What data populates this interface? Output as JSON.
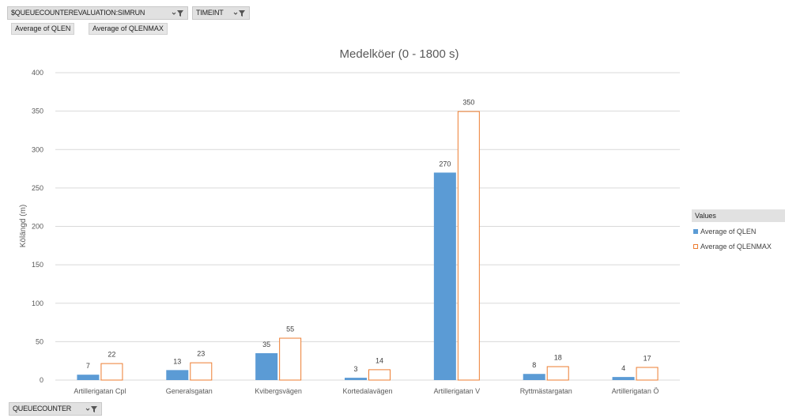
{
  "filters": {
    "top1_label": "$QUEUECOUNTEREVALUATION:SIMRUN",
    "top2_label": "TIMEINT",
    "bottom_label": "QUEUECOUNTER"
  },
  "value_buttons": [
    "Average of QLEN",
    "Average of QLENMAX"
  ],
  "legend": {
    "title": "Values",
    "items": [
      "Average of QLEN",
      "Average of QLENMAX"
    ]
  },
  "colors": {
    "qlen": "#5b9bd5",
    "qlenmax_border": "#ed7d31",
    "grid": "#d9d9d9",
    "text": "#595959"
  },
  "chart_data": {
    "type": "bar",
    "title": "Medelköer (0 - 1800 s)",
    "xlabel": "",
    "ylabel": "Kölängd (m)",
    "ylim": [
      0,
      400
    ],
    "yticks": [
      0,
      50,
      100,
      150,
      200,
      250,
      300,
      350,
      400
    ],
    "categories": [
      "Artillerigatan Cpl",
      "Generalsgatan",
      "Kvibergsvägen",
      "Kortedalavägen",
      "Artillerigatan V",
      "Ryttmästargatan",
      "Artillerigatan Ö"
    ],
    "series": [
      {
        "name": "Average of QLEN",
        "values": [
          7,
          13,
          35,
          3,
          270,
          8,
          4
        ]
      },
      {
        "name": "Average of QLENMAX",
        "values": [
          22,
          23,
          55,
          14,
          350,
          18,
          17
        ]
      }
    ],
    "grid": true,
    "legend_position": "right"
  }
}
